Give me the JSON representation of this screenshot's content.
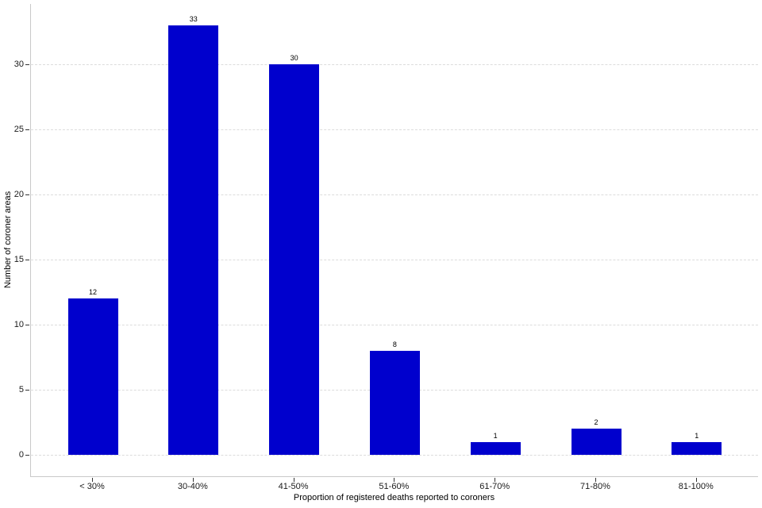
{
  "chart_data": {
    "type": "bar",
    "title": "",
    "categories": [
      "< 30%",
      "30-40%",
      "41-50%",
      "51-60%",
      "61-70%",
      "71-80%",
      "81-100%"
    ],
    "values": [
      12,
      33,
      30,
      8,
      1,
      2,
      1
    ],
    "xlabel": "Proportion of registered deaths reported to coroners",
    "ylabel": "Number of coroner areas",
    "ylim": [
      0,
      34.65
    ],
    "yticks": [
      0,
      5,
      10,
      15,
      20,
      25,
      30
    ],
    "bar_color": "#0000CD",
    "gridline_color": "#dcdcdc",
    "axis_line_color": "#c9c9c9",
    "tick_color": "#333333",
    "grid": "horizontal-dashed",
    "legend": "none",
    "bar_labels_shown": true
  }
}
